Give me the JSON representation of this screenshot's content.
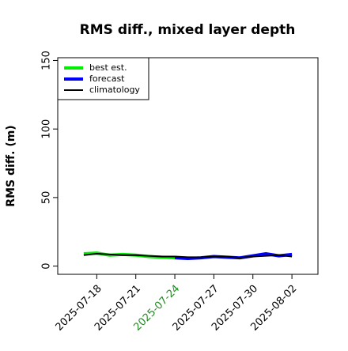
{
  "chart_data": {
    "type": "line",
    "title": "RMS diff., mixed layer depth",
    "y_label": "RMS diff. (m)",
    "x": [
      "2025-07-17",
      "2025-07-18",
      "2025-07-19",
      "2025-07-20",
      "2025-07-21",
      "2025-07-22",
      "2025-07-23",
      "2025-07-24",
      "2025-07-25",
      "2025-07-26",
      "2025-07-27",
      "2025-07-28",
      "2025-07-29",
      "2025-07-30",
      "2025-07-31",
      "2025-08-01",
      "2025-08-02"
    ],
    "series": [
      {
        "name": "best est.",
        "color": "#00ee00",
        "width": 4,
        "values": [
          9,
          9.5,
          8,
          8.5,
          8,
          7,
          6.5,
          6,
          null,
          null,
          null,
          null,
          null,
          null,
          null,
          null,
          null
        ]
      },
      {
        "name": "forecast",
        "color": "#0000ff",
        "width": 4,
        "values": [
          null,
          null,
          null,
          null,
          null,
          null,
          null,
          6,
          5.5,
          6,
          7,
          6.5,
          6,
          7.5,
          9,
          7.5,
          8.5
        ]
      },
      {
        "name": "climatology",
        "color": "#000000",
        "width": 2,
        "values": [
          8,
          9,
          8.5,
          8,
          8,
          7.5,
          7,
          7,
          6.5,
          6.5,
          7,
          7,
          6,
          7,
          7.5,
          8,
          7
        ]
      }
    ],
    "xlim": [
      "2025-07-15",
      "2025-08-04"
    ],
    "xticks": [
      "2025-07-18",
      "2025-07-21",
      "2025-07-24",
      "2025-07-27",
      "2025-07-30",
      "2025-08-02"
    ],
    "xtick_highlight": "2025-07-24",
    "xtick_highlight_color": "#228b22",
    "ylim": [
      -6,
      152
    ],
    "yticks": [
      0,
      50,
      100,
      150
    ],
    "legend": "top-left"
  }
}
